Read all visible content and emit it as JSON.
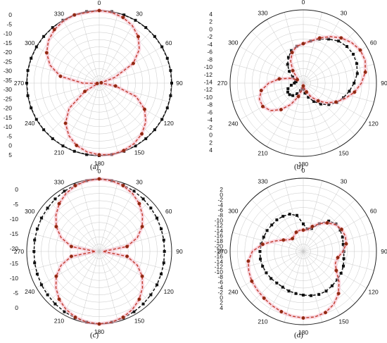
{
  "colors": {
    "simulated": "#111111",
    "measured": "#c0392b",
    "measured_marker": "#8b2a12",
    "envelope": "#f5b8c8",
    "grid": "#c8c8c8"
  },
  "chart_data": [
    {
      "type": "polar",
      "panel_label": "(a)",
      "angle_labels": [
        "0",
        "30",
        "60",
        "90",
        "120",
        "150",
        "180",
        "210",
        "240",
        "270",
        "300",
        "330"
      ],
      "radial_ticks": [
        0,
        -5,
        -10,
        -15,
        -20,
        -25,
        -30,
        -35,
        -30,
        -25,
        -20,
        -15,
        -10,
        -5,
        0,
        5
      ],
      "rlim": [
        -35,
        0
      ],
      "grid": true,
      "series": [
        {
          "style": "black-square",
          "r": [
            0,
            0,
            0,
            0,
            0,
            0,
            0,
            0,
            0,
            0,
            0,
            0,
            0,
            0,
            0,
            0,
            0,
            0,
            0,
            0,
            0,
            0,
            0,
            0,
            0,
            0,
            0,
            0,
            0,
            0,
            0,
            0,
            0,
            0,
            0,
            0,
            0
          ]
        },
        {
          "style": "red-circle",
          "r": [
            0,
            -0.4,
            -1.3,
            -3,
            -5.7,
            -9.7,
            -16,
            -27,
            -34,
            -34,
            -27,
            -16,
            -9.7,
            -5.7,
            -3,
            -1.3,
            -0.4,
            0,
            -0.4,
            -1.3,
            -3,
            -5.7,
            -9.7,
            -16,
            -27,
            -34,
            -34,
            -27,
            -16,
            -9.7,
            -5.7,
            -3,
            -1.3,
            -0.4,
            0,
            -0.4,
            0
          ]
        }
      ]
    },
    {
      "type": "polar",
      "panel_label": "(b)",
      "angle_labels": [
        "0",
        "30",
        "60",
        "90",
        "120",
        "150",
        "180",
        "210",
        "240",
        "270",
        "300",
        "330"
      ],
      "radial_ticks": [
        4,
        2,
        0,
        -2,
        -4,
        -6,
        -8,
        -10,
        -12,
        -14,
        -12,
        -10,
        -8,
        -6,
        -4,
        -2,
        0,
        2,
        4
      ],
      "rlim": [
        -14,
        4
      ],
      "grid": true,
      "series": [
        {
          "style": "black-square",
          "r": [
            -4.3,
            -3.5,
            -2.5,
            -1.5,
            -0.5,
            0,
            0.2,
            0,
            -0.5,
            -1.5,
            -2.5,
            -3.5,
            -4.5,
            -5.8,
            -7.3,
            -8.8,
            -10.3,
            -11.5,
            -12.5,
            -12.6,
            -12,
            -11,
            -10,
            -9.6,
            -9.6,
            -10,
            -11,
            -11.8,
            -12.2,
            -12,
            -11,
            -9.5,
            -8,
            -6.7,
            -5.5,
            -4.8,
            -4.3
          ]
        },
        {
          "style": "red-circle",
          "r": [
            -4.3,
            -3.5,
            -2.2,
            -0.8,
            0.5,
            1.5,
            2.2,
            2.2,
            1.5,
            0.3,
            -1.2,
            -3,
            -4.7,
            -6.5,
            -8.3,
            -10,
            -11.7,
            -12.8,
            -13.3,
            -12.5,
            -10.5,
            -8,
            -5.5,
            -3.5,
            -2.5,
            -2.5,
            -3.5,
            -5.5,
            -8,
            -10.5,
            -12.3,
            -12,
            -10,
            -7.8,
            -6,
            -4.8,
            -4.3
          ]
        }
      ]
    },
    {
      "type": "polar",
      "panel_label": "(c)",
      "angle_labels": [
        "0",
        "30",
        "60",
        "90",
        "120",
        "150",
        "180",
        "210",
        "240",
        "270",
        "300",
        "330"
      ],
      "radial_ticks": [
        0,
        -5,
        -10,
        -15,
        -20,
        -15,
        -10,
        -5,
        0
      ],
      "rlim": [
        -20,
        0
      ],
      "grid": true,
      "series": [
        {
          "style": "black-square",
          "r": [
            0,
            -0.2,
            -0.5,
            -0.8,
            -1.1,
            -1.4,
            -1.6,
            -1.8,
            -1.9,
            -2,
            -1.9,
            -1.8,
            -1.6,
            -1.4,
            -1.1,
            -0.8,
            -0.5,
            -0.2,
            0,
            -0.2,
            -0.5,
            -0.8,
            -1.1,
            -1.4,
            -1.6,
            -1.8,
            -1.9,
            -2,
            -1.9,
            -1.8,
            -1.6,
            -1.4,
            -1.1,
            -0.8,
            -0.5,
            -0.2,
            0
          ]
        },
        {
          "style": "red-circle",
          "r": [
            0,
            -0.2,
            -0.7,
            -1.6,
            -2.8,
            -4.4,
            -6.3,
            -8.8,
            -12.2,
            -19,
            -12.2,
            -8.8,
            -6.3,
            -4.4,
            -2.8,
            -1.6,
            -0.7,
            -0.2,
            0,
            -0.2,
            -0.7,
            -1.6,
            -2.8,
            -4.4,
            -6.3,
            -8.8,
            -12.2,
            -19,
            -12.2,
            -8.8,
            -6.3,
            -4.4,
            -2.8,
            -1.6,
            -0.7,
            -0.2,
            0
          ]
        }
      ]
    },
    {
      "type": "polar",
      "panel_label": "(d)",
      "angle_labels": [
        "0",
        "30",
        "60",
        "90",
        "120",
        "150",
        "180",
        "210",
        "240",
        "270",
        "300",
        "330"
      ],
      "radial_ticks": [
        2,
        0,
        -2,
        -4,
        -6,
        -8,
        -10,
        -12,
        -14,
        -16,
        -18,
        -20,
        -18,
        -16,
        -14,
        -12,
        -10,
        -8,
        -6,
        -4,
        -2,
        0,
        2,
        4
      ],
      "rlim": [
        -20,
        4
      ],
      "grid": true,
      "series": [
        {
          "style": "black-square",
          "r": [
            -11,
            -12.5,
            -12,
            -9.5,
            -7,
            -6,
            -6,
            -6.3,
            -6.7,
            -6.7,
            -6.5,
            -6,
            -5.7,
            -5.5,
            -5.3,
            -5,
            -5,
            -5.3,
            -5.7,
            -6,
            -6.2,
            -6.5,
            -6.5,
            -6.2,
            -6,
            -5.8,
            -5.7,
            -5.8,
            -6,
            -6.2,
            -6.3,
            -6.5,
            -6.5,
            -6.7,
            -7,
            -8,
            -11
          ]
        },
        {
          "style": "red-circle",
          "r": [
            -13,
            -12.8,
            -11.3,
            -9.5,
            -7.8,
            -6.3,
            -5.5,
            -5.3,
            -5.7,
            -7,
            -8.5,
            -8.8,
            -7.5,
            -4.7,
            -2,
            0,
            1.3,
            1.8,
            1.8,
            1.5,
            1,
            0.5,
            0,
            -0.3,
            -0.5,
            -1,
            -1.7,
            -3.3,
            -6.5,
            -10,
            -12.5,
            -14,
            -14.5,
            -14,
            -13.3,
            -13,
            -13
          ]
        }
      ]
    }
  ]
}
